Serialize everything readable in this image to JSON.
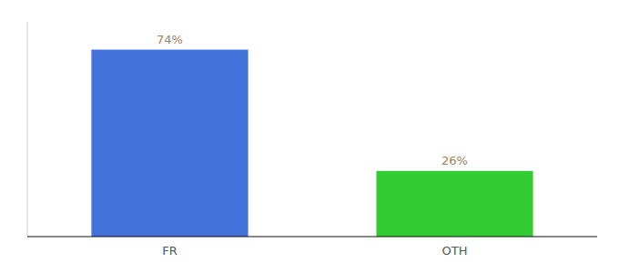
{
  "chart_data": {
    "type": "bar",
    "categories": [
      "FR",
      "OTH"
    ],
    "values": [
      74,
      26
    ],
    "colors": [
      "#4472db",
      "#33cc33"
    ],
    "ylim": [
      0,
      85
    ],
    "data_labels": true,
    "value_labels": [
      "74%",
      "26%"
    ],
    "tick_labels": "x",
    "grid": false
  }
}
